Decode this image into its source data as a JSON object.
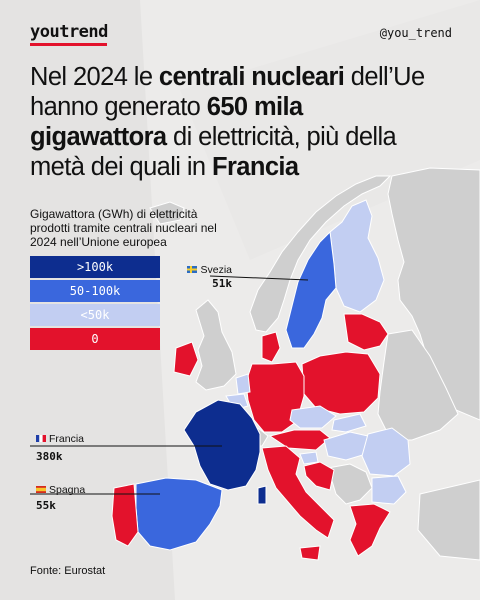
{
  "brand": "youtrend",
  "handle": "@you_trend",
  "headline": {
    "parts": [
      {
        "text": "Nel 2024 le ",
        "bold": false
      },
      {
        "text": "centrali nucleari",
        "bold": true
      },
      {
        "text": " dell’Ue hanno generato ",
        "bold": false
      },
      {
        "text": "650 mila gigawattora",
        "bold": true
      },
      {
        "text": " di elettricità, più della metà dei quali in ",
        "bold": false
      },
      {
        "text": "Francia",
        "bold": true
      }
    ]
  },
  "subtitle": "Gigawattora (GWh) di elettricità prodotti tramite centrali nucleari nel 2024 nell’Unione europea",
  "legend": [
    {
      "label": ">100k",
      "color": "#0d2d8f"
    },
    {
      "label": "50-100k",
      "color": "#3a67dd"
    },
    {
      "label": "<50k",
      "color": "#c2cef2"
    },
    {
      "label": "0",
      "color": "#e3122c"
    }
  ],
  "colors": {
    "over_100k": "#0d2d8f",
    "from_50_to_100k": "#3a67dd",
    "under_50k": "#c2cef2",
    "zero": "#e3122c",
    "non_eu": "#cfcfcf",
    "background": "#ecebea",
    "accent": "#e3122c"
  },
  "callouts": [
    {
      "id": "svezia",
      "name": "Svezia",
      "value": "51k",
      "flag": "sweden-flag"
    },
    {
      "id": "francia",
      "name": "Francia",
      "value": "380k",
      "flag": "france-flag"
    },
    {
      "id": "spagna",
      "name": "Spagna",
      "value": "55k",
      "flag": "spain-flag"
    }
  ],
  "map": {
    "countries": [
      {
        "name": "Francia",
        "category": "over_100k"
      },
      {
        "name": "Svezia",
        "category": "from_50_to_100k"
      },
      {
        "name": "Spagna",
        "category": "from_50_to_100k"
      },
      {
        "name": "Finlandia",
        "category": "under_50k"
      },
      {
        "name": "Belgio",
        "category": "under_50k"
      },
      {
        "name": "Repubblica Ceca",
        "category": "under_50k"
      },
      {
        "name": "Slovacchia",
        "category": "under_50k"
      },
      {
        "name": "Ungheria",
        "category": "under_50k"
      },
      {
        "name": "Romania",
        "category": "under_50k"
      },
      {
        "name": "Bulgaria",
        "category": "under_50k"
      },
      {
        "name": "Slovenia",
        "category": "under_50k"
      },
      {
        "name": "Paesi Bassi",
        "category": "under_50k"
      },
      {
        "name": "Germania",
        "category": "zero"
      },
      {
        "name": "Italia",
        "category": "zero"
      },
      {
        "name": "Polonia",
        "category": "zero"
      },
      {
        "name": "Portogallo",
        "category": "zero"
      },
      {
        "name": "Austria",
        "category": "zero"
      },
      {
        "name": "Grecia",
        "category": "zero"
      },
      {
        "name": "Croazia",
        "category": "zero"
      },
      {
        "name": "Danimarca",
        "category": "zero"
      },
      {
        "name": "Irlanda",
        "category": "zero"
      },
      {
        "name": "Paesi baltici",
        "category": "zero"
      }
    ]
  },
  "source": "Fonte: Eurostat"
}
